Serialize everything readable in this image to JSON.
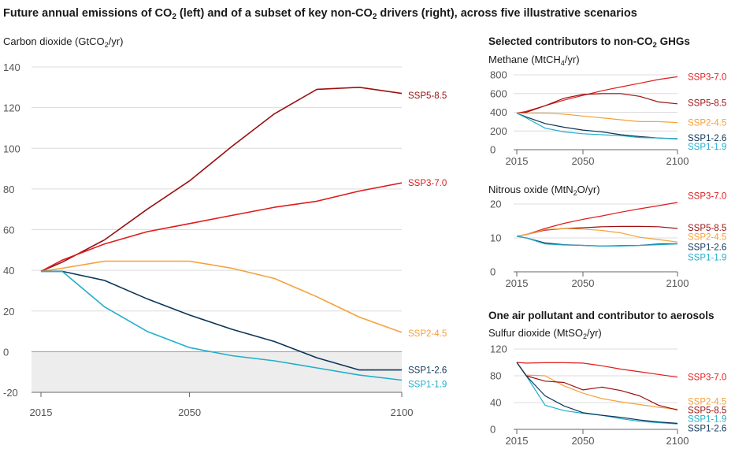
{
  "title_parts": {
    "a": "Future annual emissions of CO",
    "b": "2",
    "c": " (left) and of a subset of key non-CO",
    "d": "2",
    "e": " drivers (right), across five illustrative scenarios"
  },
  "colors": {
    "SSP5-8.5": "#9b0f0f",
    "SSP3-7.0": "#de1b1b",
    "SSP2-4.5": "#f5a03a",
    "SSP1-2.6": "#0c3559",
    "SSP1-1.9": "#22aecb"
  },
  "right_headers": {
    "nonco2": {
      "a": "Selected contributors to non-CO",
      "b": "2",
      "c": " GHGs"
    },
    "aerosol": "One air pollutant and contributor to aerosols"
  },
  "chart_data": [
    {
      "id": "co2",
      "type": "line",
      "ylabel_parts": {
        "a": "Carbon dioxide (GtCO",
        "b": "2",
        "c": "/yr)"
      },
      "xlim": [
        2015,
        2100
      ],
      "ylim": [
        -20,
        140
      ],
      "xticks": [
        2015,
        2050,
        2100
      ],
      "yticks": [
        -20,
        0,
        20,
        40,
        60,
        80,
        100,
        120,
        140
      ],
      "negative_shaded": true,
      "x": [
        2015,
        2020,
        2030,
        2040,
        2050,
        2060,
        2070,
        2080,
        2090,
        2100
      ],
      "series": [
        {
          "name": "SSP5-8.5",
          "values": [
            39.5,
            44,
            55,
            70,
            84,
            101,
            117,
            129,
            130,
            127
          ],
          "label_y": 126
        },
        {
          "name": "SSP3-7.0",
          "values": [
            39.5,
            45,
            53,
            59,
            63,
            67,
            71,
            74,
            79,
            83
          ],
          "label_y": 83
        },
        {
          "name": "SSP2-4.5",
          "values": [
            39.5,
            41,
            44.5,
            44.5,
            44.5,
            41,
            36,
            27,
            17,
            9.5
          ],
          "label_y": 9
        },
        {
          "name": "SSP1-2.6",
          "values": [
            39.5,
            39.5,
            35,
            26,
            18,
            11,
            5,
            -3,
            -9,
            -9
          ],
          "label_y": -9
        },
        {
          "name": "SSP1-1.9",
          "values": [
            39.5,
            39.5,
            22,
            10,
            2,
            -2,
            -4.5,
            -8,
            -11.5,
            -14
          ],
          "label_y": -16
        }
      ]
    },
    {
      "id": "methane",
      "type": "line",
      "ylabel_parts": {
        "a": "Methane (MtCH",
        "b": "4",
        "c": "/yr)"
      },
      "xlim": [
        2015,
        2100
      ],
      "ylim": [
        0,
        800
      ],
      "xticks": [
        2015,
        2050,
        2100
      ],
      "yticks": [
        0,
        200,
        400,
        600,
        800
      ],
      "x": [
        2015,
        2020,
        2030,
        2040,
        2050,
        2060,
        2070,
        2080,
        2090,
        2100
      ],
      "series": [
        {
          "name": "SSP3-7.0",
          "values": [
            390,
            410,
            470,
            530,
            580,
            630,
            670,
            710,
            750,
            780
          ],
          "label_y": 780
        },
        {
          "name": "SSP5-8.5",
          "values": [
            390,
            400,
            470,
            550,
            590,
            600,
            600,
            570,
            510,
            490
          ],
          "label_y": 500
        },
        {
          "name": "SSP2-4.5",
          "values": [
            390,
            390,
            390,
            380,
            360,
            340,
            320,
            300,
            300,
            290
          ],
          "label_y": 290
        },
        {
          "name": "SSP1-2.6",
          "values": [
            390,
            350,
            280,
            240,
            210,
            190,
            160,
            140,
            125,
            115
          ],
          "label_y": 125
        },
        {
          "name": "SSP1-1.9",
          "values": [
            390,
            340,
            230,
            190,
            170,
            160,
            150,
            130,
            125,
            120
          ],
          "label_y": 35
        }
      ]
    },
    {
      "id": "n2o",
      "type": "line",
      "ylabel_parts": {
        "a": "Nitrous oxide (MtN",
        "b": "2",
        "c": "O/yr)"
      },
      "xlim": [
        2015,
        2100
      ],
      "ylim": [
        0,
        20
      ],
      "xticks": [
        2015,
        2050,
        2100
      ],
      "yticks": [
        0,
        10,
        20
      ],
      "x": [
        2015,
        2020,
        2030,
        2040,
        2050,
        2060,
        2070,
        2080,
        2090,
        2100
      ],
      "series": [
        {
          "name": "SSP3-7.0",
          "values": [
            10.5,
            11,
            12.8,
            14.3,
            15.5,
            16.5,
            17.6,
            18.6,
            19.5,
            20.5
          ],
          "label_y": 22.5
        },
        {
          "name": "SSP5-8.5",
          "values": [
            10.5,
            11,
            12.3,
            12.8,
            13,
            13.3,
            13.4,
            13.4,
            13.3,
            12.8
          ],
          "label_y": 13
        },
        {
          "name": "SSP2-4.5",
          "values": [
            10.5,
            11,
            12.5,
            12.8,
            12.6,
            12.2,
            11.5,
            10.2,
            9.5,
            8.8
          ],
          "label_y": 10.3
        },
        {
          "name": "SSP1-2.6",
          "values": [
            10.5,
            10,
            8.5,
            8,
            7.8,
            7.6,
            7.7,
            7.8,
            8.2,
            8.3
          ],
          "label_y": 7.3
        },
        {
          "name": "SSP1-1.9",
          "values": [
            10.5,
            10,
            8.2,
            7.9,
            7.8,
            7.6,
            7.6,
            7.8,
            8,
            8.2
          ],
          "label_y": 4.3
        }
      ]
    },
    {
      "id": "so2",
      "type": "line",
      "ylabel_parts": {
        "a": "Sulfur dioxide (MtSO",
        "b": "2",
        "c": "/yr)"
      },
      "xlim": [
        2015,
        2100
      ],
      "ylim": [
        0,
        120
      ],
      "xticks": [
        2015,
        2050,
        2100
      ],
      "yticks": [
        0,
        40,
        80,
        120
      ],
      "x": [
        2015,
        2020,
        2030,
        2040,
        2050,
        2060,
        2070,
        2080,
        2090,
        2100
      ],
      "series": [
        {
          "name": "SSP3-7.0",
          "values": [
            100,
            99,
            99.5,
            99.5,
            99,
            95,
            90,
            86,
            82,
            78
          ],
          "label_y": 78
        },
        {
          "name": "SSP2-4.5",
          "values": [
            100,
            81,
            80,
            65,
            54,
            46,
            41,
            37,
            33,
            30
          ],
          "label_y": 42
        },
        {
          "name": "SSP5-8.5",
          "values": [
            100,
            80,
            72,
            70,
            59,
            63,
            58,
            50,
            36,
            29
          ],
          "label_y": 29
        },
        {
          "name": "SSP1-1.9",
          "values": [
            100,
            80,
            36,
            28,
            24,
            21,
            16,
            12,
            10,
            8
          ],
          "label_y": 16
        },
        {
          "name": "SSP1-2.6",
          "values": [
            100,
            80,
            50,
            35,
            25,
            21,
            18,
            14,
            11,
            9
          ],
          "label_y": 2
        }
      ]
    }
  ]
}
